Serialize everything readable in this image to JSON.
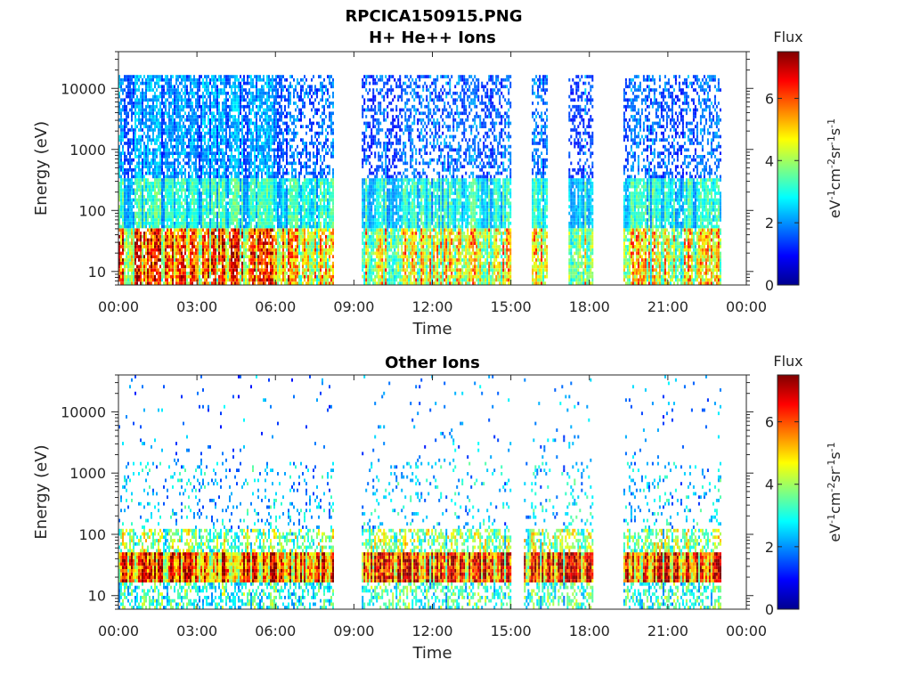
{
  "figure_title": "RPCICA150915.PNG",
  "colormap": [
    "#00008f",
    "#0000ff",
    "#0080ff",
    "#00ffff",
    "#80ff80",
    "#ffff00",
    "#ff8000",
    "#ff0000",
    "#800000"
  ],
  "chart_data": [
    {
      "type": "heatmap",
      "title": "H+ He++ Ions",
      "xlabel": "Time",
      "ylabel": "Energy (eV)",
      "yscale": "log",
      "ylim": [
        6,
        40000
      ],
      "xlim": [
        "00:00",
        "24:00"
      ],
      "x_tick_labels": [
        "00:00",
        "03:00",
        "06:00",
        "09:00",
        "12:00",
        "15:00",
        "18:00",
        "21:00",
        "00:00"
      ],
      "y_ticks": [
        10,
        100,
        1000,
        10000
      ],
      "y_tick_labels": [
        "10",
        "100",
        "1000",
        "10000"
      ],
      "data_intervals_hours": [
        [
          0.0,
          8.2
        ],
        [
          9.3,
          15.0
        ],
        [
          15.8,
          16.4
        ],
        [
          17.2,
          18.1
        ],
        [
          19.3,
          23.0
        ]
      ],
      "grid": false,
      "colorbar": {
        "title": "Flux",
        "label": "eV-1cm-2sr-1s-1",
        "range": [
          0,
          7.5
        ],
        "ticks": [
          "0",
          "2",
          "4",
          "6"
        ]
      }
    },
    {
      "type": "heatmap",
      "title": "Other Ions",
      "xlabel": "Time",
      "ylabel": "Energy (eV)",
      "yscale": "log",
      "ylim": [
        6,
        40000
      ],
      "xlim": [
        "00:00",
        "24:00"
      ],
      "x_tick_labels": [
        "00:00",
        "03:00",
        "06:00",
        "09:00",
        "12:00",
        "15:00",
        "18:00",
        "21:00",
        "00:00"
      ],
      "y_ticks": [
        10,
        100,
        1000,
        10000
      ],
      "y_tick_labels": [
        "10",
        "100",
        "1000",
        "10000"
      ],
      "data_intervals_hours": [
        [
          0.0,
          8.2
        ],
        [
          9.3,
          15.0
        ],
        [
          15.5,
          18.1
        ],
        [
          19.3,
          23.0
        ]
      ],
      "grid": false,
      "colorbar": {
        "title": "Flux",
        "label": "eV-1cm-2sr-1s-1",
        "range": [
          0,
          7.5
        ],
        "ticks": [
          "0",
          "2",
          "4",
          "6"
        ]
      }
    }
  ]
}
